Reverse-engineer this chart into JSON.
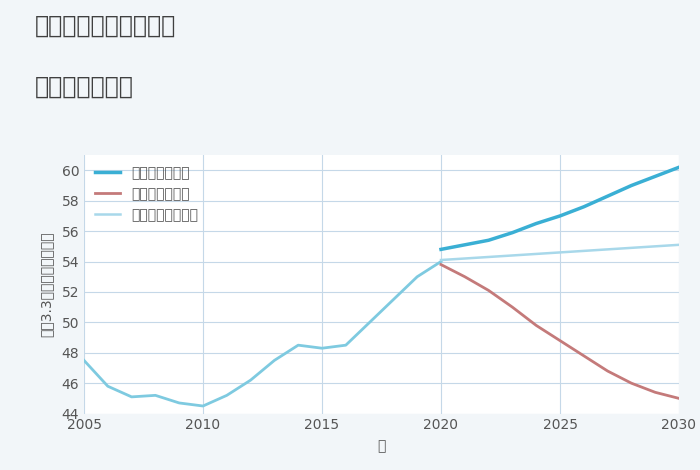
{
  "title_line1": "愛知県岡崎市不吹町の",
  "title_line2": "土地の価格推移",
  "xlabel": "年",
  "ylabel_parts": [
    "平（3.3㎡）単価（万円）"
  ],
  "xlim": [
    2005,
    2030
  ],
  "ylim": [
    44,
    61
  ],
  "yticks": [
    44,
    46,
    48,
    50,
    52,
    54,
    56,
    58,
    60
  ],
  "xticks": [
    2005,
    2010,
    2015,
    2020,
    2025,
    2030
  ],
  "background_color": "#f2f6f9",
  "plot_bg_color": "#ffffff",
  "grid_color": "#c5d8e8",
  "historical": {
    "years": [
      2005,
      2006,
      2007,
      2008,
      2009,
      2010,
      2011,
      2012,
      2013,
      2014,
      2015,
      2016,
      2017,
      2018,
      2019,
      2020
    ],
    "values": [
      47.5,
      45.8,
      45.1,
      45.2,
      44.7,
      44.5,
      45.2,
      46.2,
      47.5,
      48.5,
      48.3,
      48.5,
      50.0,
      51.5,
      53.0,
      54.0
    ],
    "color": "#7ecae0",
    "linewidth": 2.0
  },
  "good": {
    "years": [
      2020,
      2021,
      2022,
      2023,
      2024,
      2025,
      2026,
      2027,
      2028,
      2029,
      2030
    ],
    "values": [
      54.8,
      55.1,
      55.4,
      55.9,
      56.5,
      57.0,
      57.6,
      58.3,
      59.0,
      59.6,
      60.2
    ],
    "color": "#3aafd4",
    "linewidth": 2.5,
    "label": "グッドシナリオ"
  },
  "bad": {
    "years": [
      2020,
      2021,
      2022,
      2023,
      2024,
      2025,
      2026,
      2027,
      2028,
      2029,
      2030
    ],
    "values": [
      53.8,
      53.0,
      52.1,
      51.0,
      49.8,
      48.8,
      47.8,
      46.8,
      46.0,
      45.4,
      45.0
    ],
    "color": "#c47a7a",
    "linewidth": 2.0,
    "label": "バッドシナリオ"
  },
  "normal": {
    "years": [
      2020,
      2021,
      2022,
      2023,
      2024,
      2025,
      2026,
      2027,
      2028,
      2029,
      2030
    ],
    "values": [
      54.1,
      54.2,
      54.3,
      54.4,
      54.5,
      54.6,
      54.7,
      54.8,
      54.9,
      55.0,
      55.1
    ],
    "color": "#a8d8ea",
    "linewidth": 1.8,
    "label": "ノーマルシナリオ"
  },
  "title_color": "#404040",
  "title_fontsize": 17,
  "axis_label_fontsize": 10,
  "tick_fontsize": 10,
  "legend_fontsize": 10
}
